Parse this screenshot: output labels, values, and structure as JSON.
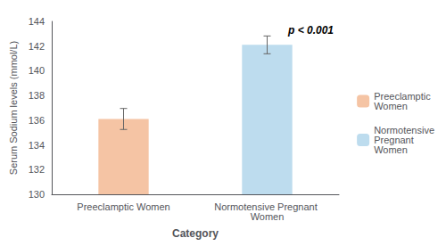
{
  "chart_data": {
    "type": "bar",
    "categories": [
      "Preeclamptic Women",
      "Normotensive Pregnant Women"
    ],
    "series": [
      {
        "name": "Preeclamptic\nWomen",
        "color": "#F5C4A4",
        "values": [
          136.1,
          null
        ],
        "errors": [
          0.85,
          null
        ]
      },
      {
        "name": "Normotensive\nPregnant\nWomen",
        "color": "#BDDCEE",
        "values": [
          null,
          142.1
        ],
        "errors": [
          null,
          0.72
        ]
      }
    ],
    "ylim": [
      130,
      144
    ],
    "yticks": [
      130,
      132,
      134,
      136,
      138,
      140,
      142,
      144
    ],
    "ylabel": "Serum Sodium levels (mmol/L)",
    "xlabel": "Category",
    "annotation": "p < 0.001",
    "legend": "right",
    "grid": false
  }
}
